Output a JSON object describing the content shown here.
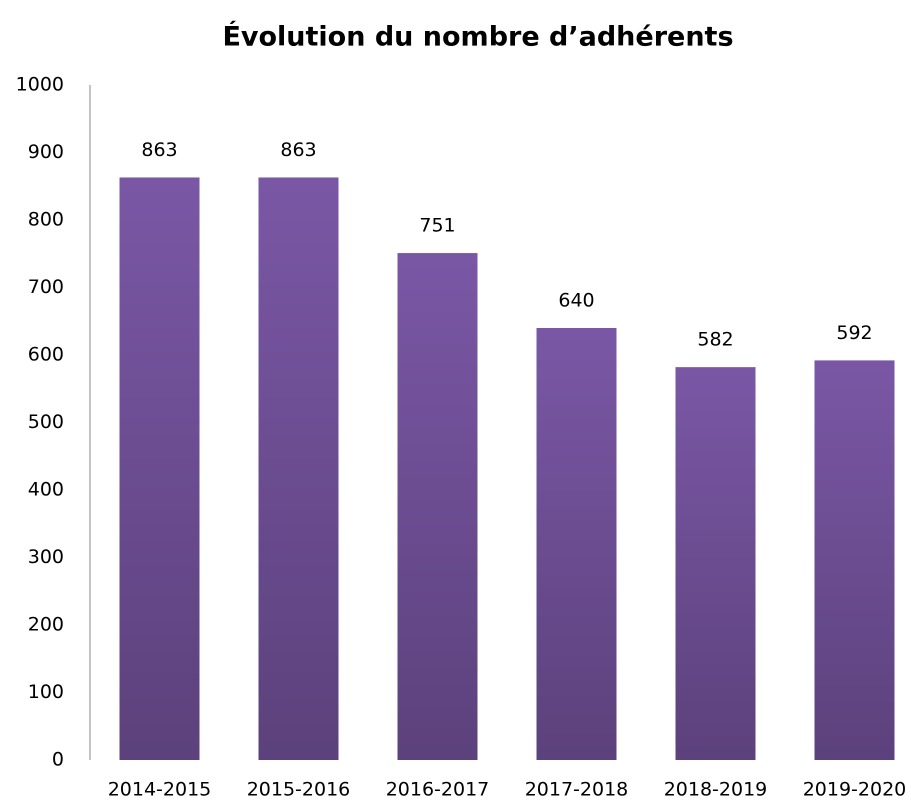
{
  "chart_data": {
    "type": "bar",
    "title": "Évolution du nombre d’adhérents",
    "categories": [
      "2014-2015",
      "2015-2016",
      "2016-2017",
      "2017-2018",
      "2018-2019",
      "2019-2020"
    ],
    "values": [
      863,
      863,
      751,
      640,
      582,
      592
    ],
    "color": "#7a57a5",
    "ylim": [
      0,
      1000
    ],
    "yticks": [
      0,
      100,
      200,
      300,
      400,
      500,
      600,
      700,
      800,
      900,
      1000
    ],
    "grid": false
  }
}
